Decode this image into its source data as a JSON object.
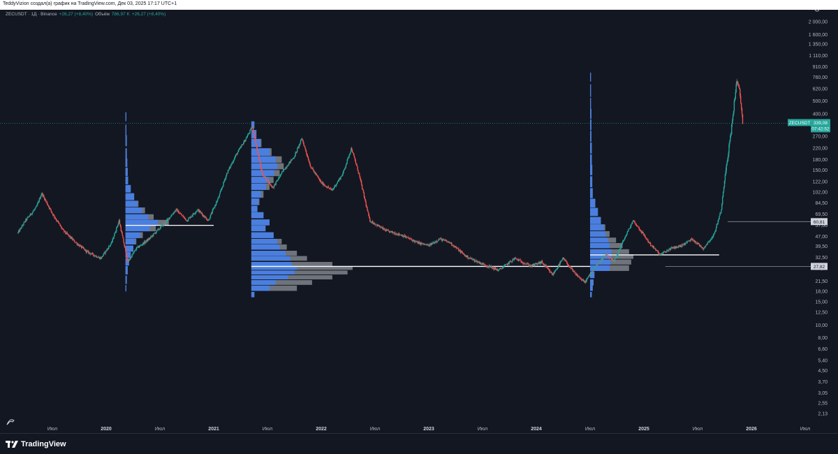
{
  "header": {
    "text": "TeddyVizion создал(а) график на TradingView.com, Дек 03, 2025 17:17 UTC+1"
  },
  "legend": {
    "symbol": "ZECUSDT · 1Д · Binance",
    "change": "+26,27 (+8,40%)",
    "volume_label": "Объём",
    "volume_value": "786,97 K",
    "volume_change": "+26,27 (+8,40%)"
  },
  "brand": {
    "name": "TradingView"
  },
  "colors": {
    "background": "#131722",
    "up": "#26a69a",
    "down": "#ef5350",
    "vp_blue": "#4a7fe0",
    "vp_grey": "#7a7d85",
    "poc_line": "#ffffff",
    "last_price": "#26a69a"
  },
  "price_axis": {
    "ticks": [
      "2 000,00",
      "1 600,00",
      "1 350,00",
      "1 110,00",
      "910,00",
      "760,00",
      "620,00",
      "500,00",
      "400,00",
      "270,00",
      "220,00",
      "180,00",
      "150,00",
      "122,00",
      "102,00",
      "84,50",
      "69,50",
      "57,00",
      "47,00",
      "39,50",
      "32,50",
      "27,00",
      "21,50",
      "18,00",
      "15,00",
      "12,50",
      "10,00",
      "8,00",
      "6,60",
      "5,40",
      "4,50",
      "3,70",
      "3,05",
      "2,55",
      "2,13"
    ],
    "tick_values": [
      2000,
      1600,
      1350,
      1110,
      910,
      760,
      620,
      500,
      400,
      270,
      220,
      180,
      150,
      122,
      102,
      84.5,
      69.5,
      57,
      47,
      39.5,
      32.5,
      27,
      21.5,
      18,
      15,
      12.5,
      10,
      8,
      6.6,
      5.4,
      4.5,
      3.7,
      3.05,
      2.55,
      2.13
    ],
    "last_price": {
      "symbol": "ZECUSDT",
      "value": "339,08",
      "countdown": "07:42:52"
    },
    "levels": [
      {
        "value": "60,81",
        "numeric": 60.81
      },
      {
        "value": "27,82",
        "numeric": 27.82
      }
    ]
  },
  "time_axis": {
    "labels": [
      {
        "text": "Июл",
        "kind": "month",
        "t": 2019.5
      },
      {
        "text": "2020",
        "kind": "year",
        "t": 2020.0
      },
      {
        "text": "Июл",
        "kind": "month",
        "t": 2020.5
      },
      {
        "text": "2021",
        "kind": "year",
        "t": 2021.0
      },
      {
        "text": "Июл",
        "kind": "month",
        "t": 2021.5
      },
      {
        "text": "2022",
        "kind": "year",
        "t": 2022.0
      },
      {
        "text": "Июл",
        "kind": "month",
        "t": 2022.5
      },
      {
        "text": "2023",
        "kind": "year",
        "t": 2023.0
      },
      {
        "text": "Июл",
        "kind": "month",
        "t": 2023.5
      },
      {
        "text": "2024",
        "kind": "year",
        "t": 2024.0
      },
      {
        "text": "Июл",
        "kind": "month",
        "t": 2024.5
      },
      {
        "text": "2025",
        "kind": "year",
        "t": 2025.0
      },
      {
        "text": "Июл",
        "kind": "month",
        "t": 2025.5
      },
      {
        "text": "2026",
        "kind": "year",
        "t": 2026.0
      },
      {
        "text": "Июл",
        "kind": "month",
        "t": 2026.5
      }
    ]
  },
  "price_path": [
    [
      2019.18,
      50
    ],
    [
      2019.25,
      62
    ],
    [
      2019.35,
      78
    ],
    [
      2019.4,
      100
    ],
    [
      2019.5,
      70
    ],
    [
      2019.6,
      52
    ],
    [
      2019.72,
      42
    ],
    [
      2019.82,
      36
    ],
    [
      2019.95,
      32
    ],
    [
      2020.05,
      42
    ],
    [
      2020.12,
      62
    ],
    [
      2020.2,
      30
    ],
    [
      2020.28,
      38
    ],
    [
      2020.4,
      45
    ],
    [
      2020.55,
      60
    ],
    [
      2020.65,
      75
    ],
    [
      2020.75,
      62
    ],
    [
      2020.85,
      75
    ],
    [
      2020.95,
      62
    ],
    [
      2021.05,
      95
    ],
    [
      2021.12,
      140
    ],
    [
      2021.2,
      190
    ],
    [
      2021.3,
      260
    ],
    [
      2021.36,
      320
    ],
    [
      2021.45,
      140
    ],
    [
      2021.55,
      110
    ],
    [
      2021.65,
      150
    ],
    [
      2021.75,
      190
    ],
    [
      2021.82,
      260
    ],
    [
      2021.9,
      160
    ],
    [
      2022.0,
      120
    ],
    [
      2022.1,
      105
    ],
    [
      2022.2,
      140
    ],
    [
      2022.28,
      220
    ],
    [
      2022.35,
      140
    ],
    [
      2022.45,
      62
    ],
    [
      2022.6,
      52
    ],
    [
      2022.75,
      48
    ],
    [
      2022.9,
      42
    ],
    [
      2023.0,
      40
    ],
    [
      2023.1,
      45
    ],
    [
      2023.2,
      42
    ],
    [
      2023.35,
      33
    ],
    [
      2023.5,
      29
    ],
    [
      2023.65,
      26
    ],
    [
      2023.8,
      32
    ],
    [
      2023.95,
      28
    ],
    [
      2024.05,
      30
    ],
    [
      2024.15,
      24
    ],
    [
      2024.25,
      32
    ],
    [
      2024.35,
      25
    ],
    [
      2024.45,
      21
    ],
    [
      2024.55,
      28
    ],
    [
      2024.65,
      34
    ],
    [
      2024.72,
      30
    ],
    [
      2024.8,
      42
    ],
    [
      2024.9,
      62
    ],
    [
      2024.97,
      52
    ],
    [
      2025.05,
      42
    ],
    [
      2025.15,
      34
    ],
    [
      2025.25,
      38
    ],
    [
      2025.35,
      40
    ],
    [
      2025.45,
      45
    ],
    [
      2025.55,
      38
    ],
    [
      2025.65,
      48
    ],
    [
      2025.72,
      75
    ],
    [
      2025.76,
      150
    ],
    [
      2025.8,
      250
    ],
    [
      2025.83,
      400
    ],
    [
      2025.86,
      700
    ],
    [
      2025.89,
      600
    ],
    [
      2025.92,
      339
    ]
  ],
  "volume_profiles": [
    {
      "t_start": 2020.18,
      "t_end": 2020.95,
      "poc": 57,
      "max_width": 62,
      "rows": [
        [
          380,
          0.02,
          1
        ],
        [
          300,
          0.02,
          1
        ],
        [
          250,
          0.03,
          1
        ],
        [
          200,
          0.03,
          1
        ],
        [
          170,
          0.04,
          1
        ],
        [
          145,
          0.05,
          1
        ],
        [
          125,
          0.06,
          1
        ],
        [
          108,
          0.12,
          1
        ],
        [
          94,
          0.2,
          1
        ],
        [
          83,
          0.3,
          0.9
        ],
        [
          74,
          0.45,
          0.85
        ],
        [
          66,
          0.65,
          0.8
        ],
        [
          60,
          1.0,
          0.75
        ],
        [
          54,
          0.7,
          0.8
        ],
        [
          48,
          0.4,
          0.85
        ],
        [
          43,
          0.25,
          0.9
        ],
        [
          38,
          0.18,
          1
        ],
        [
          34,
          0.12,
          1
        ],
        [
          30,
          0.08,
          1
        ],
        [
          26,
          0.05,
          1
        ],
        [
          22,
          0.03,
          1
        ],
        [
          19,
          0.02,
          1
        ]
      ]
    },
    {
      "t_start": 2021.35,
      "t_end": 2022.45,
      "poc": 27,
      "max_width": 145,
      "rows": [
        [
          330,
          0.03,
          1
        ],
        [
          280,
          0.05,
          1
        ],
        [
          240,
          0.1,
          0.9
        ],
        [
          205,
          0.2,
          0.9
        ],
        [
          180,
          0.3,
          0.8
        ],
        [
          160,
          0.32,
          0.8
        ],
        [
          142,
          0.28,
          0.8
        ],
        [
          126,
          0.22,
          0.8
        ],
        [
          112,
          0.18,
          0.8
        ],
        [
          98,
          0.12,
          0.8
        ],
        [
          86,
          0.08,
          0.9
        ],
        [
          76,
          0.06,
          1
        ],
        [
          68,
          0.12,
          1
        ],
        [
          60,
          0.18,
          1
        ],
        [
          54,
          0.14,
          1
        ],
        [
          48,
          0.22,
          1
        ],
        [
          43,
          0.3,
          0.85
        ],
        [
          39,
          0.35,
          0.8
        ],
        [
          35,
          0.45,
          0.75
        ],
        [
          32,
          0.55,
          0.7
        ],
        [
          29,
          0.8,
          0.5
        ],
        [
          27,
          1.0,
          0.45
        ],
        [
          25,
          0.95,
          0.45
        ],
        [
          23,
          0.8,
          0.45
        ],
        [
          21,
          0.6,
          0.4
        ],
        [
          19,
          0.45,
          0.4
        ],
        [
          17,
          0.03,
          1
        ]
      ]
    },
    {
      "t_start": 2024.5,
      "t_end": 2025.4,
      "poc": 34,
      "max_width": 62,
      "rows": [
        [
          760,
          0.02,
          1
        ],
        [
          600,
          0.02,
          1
        ],
        [
          480,
          0.02,
          1
        ],
        [
          400,
          0.03,
          1
        ],
        [
          330,
          0.03,
          1
        ],
        [
          270,
          0.03,
          1
        ],
        [
          220,
          0.04,
          1
        ],
        [
          180,
          0.04,
          1
        ],
        [
          150,
          0.05,
          1
        ],
        [
          122,
          0.05,
          1
        ],
        [
          100,
          0.06,
          1
        ],
        [
          84,
          0.12,
          1
        ],
        [
          72,
          0.18,
          1
        ],
        [
          62,
          0.25,
          1
        ],
        [
          55,
          0.35,
          0.9
        ],
        [
          49,
          0.45,
          0.8
        ],
        [
          44,
          0.6,
          0.7
        ],
        [
          40,
          0.75,
          0.6
        ],
        [
          36,
          0.9,
          0.55
        ],
        [
          33,
          1.0,
          0.5
        ],
        [
          30,
          0.95,
          0.5
        ],
        [
          27,
          0.9,
          0.5
        ],
        [
          24,
          0.1,
          1
        ],
        [
          21,
          0.08,
          1
        ],
        [
          19,
          0.06,
          1
        ],
        [
          17,
          0.04,
          1
        ]
      ]
    }
  ],
  "poc_lines": [
    {
      "price": 57,
      "t_start": 2020.18,
      "t_end": 2021.0
    },
    {
      "price": 27.8,
      "t_start": 2021.35,
      "t_end": 2024.5
    },
    {
      "price": 34,
      "t_start": 2024.5,
      "t_end": 2025.7
    }
  ],
  "level_lines": [
    {
      "price": 60.81,
      "t_start": 2025.78,
      "t_end": 2026.62
    },
    {
      "price": 27.82,
      "t_start": 2025.2,
      "t_end": 2026.62
    }
  ]
}
